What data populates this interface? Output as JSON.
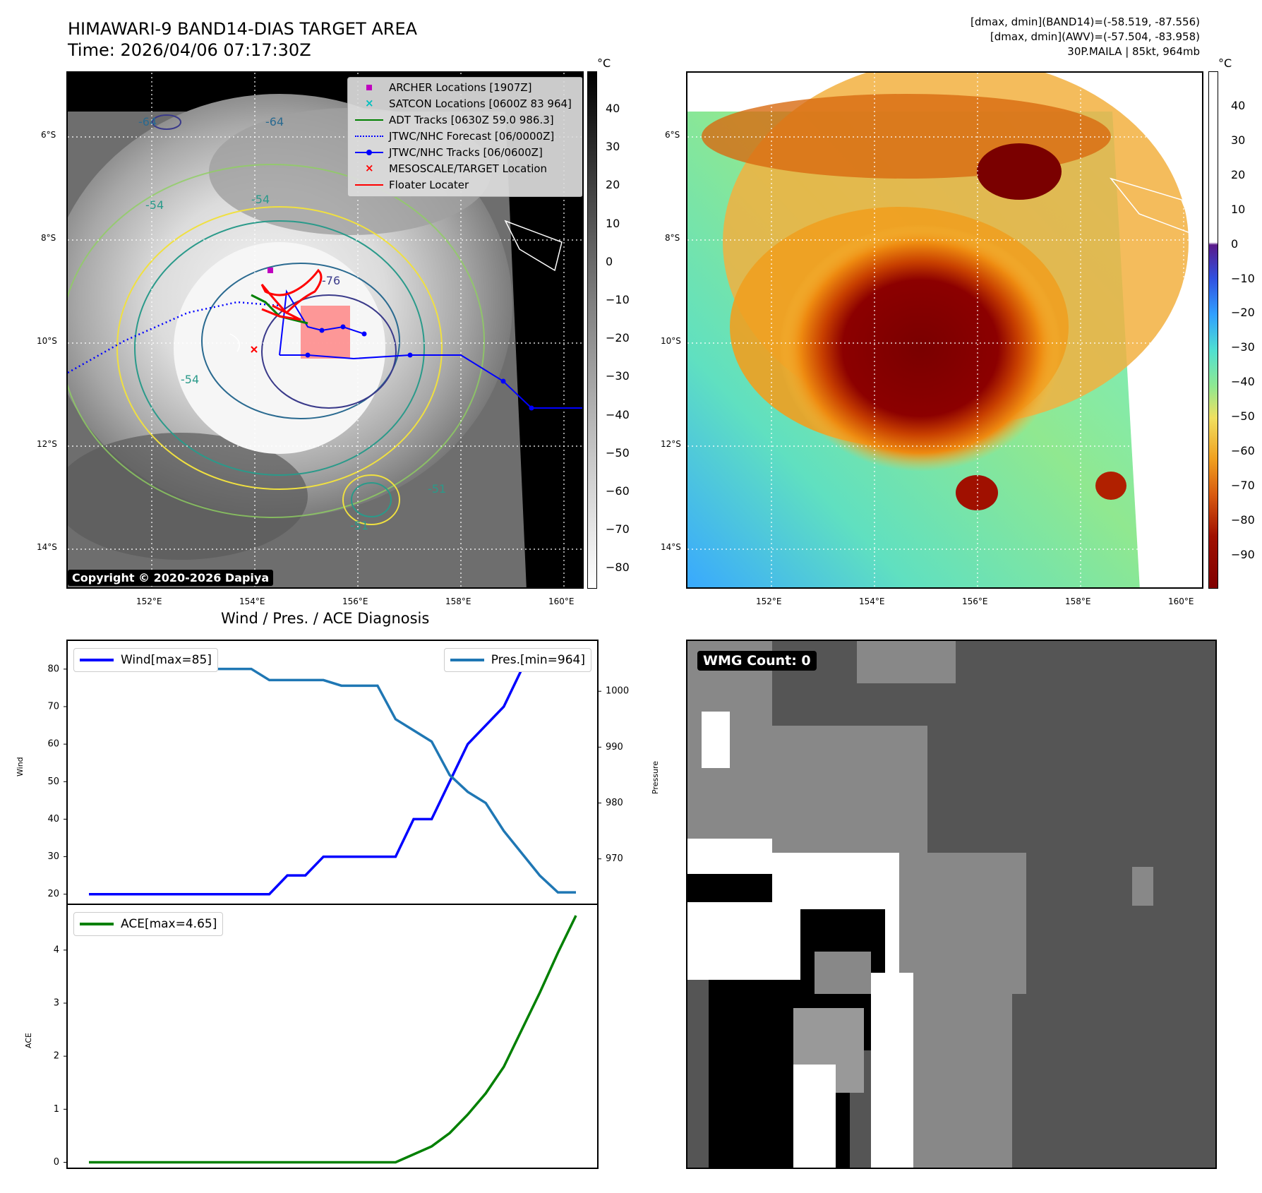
{
  "header": {
    "title_line1": "HIMAWARI-9 BAND14-DIAS TARGET AREA",
    "title_line2": "Time: 2026/04/06 07:17:30Z",
    "info_line1": "[dmax, dmin](BAND14)=(-58.519, -87.556)",
    "info_line2": "[dmax, dmin](AWV)=(-57.504, -83.958)",
    "info_line3": "30P.MAILA | 85kt, 964mb"
  },
  "map": {
    "lat_ticks": [
      "6°S",
      "8°S",
      "10°S",
      "12°S",
      "14°S"
    ],
    "lon_ticks": [
      "152°E",
      "154°E",
      "156°E",
      "158°E",
      "160°E"
    ],
    "copyright": "Copyright © 2020-2026 Dapiya",
    "contour_labels": [
      "-64",
      "-64",
      "-54",
      "-54",
      "-76",
      "-54",
      "-51",
      "-51"
    ],
    "legend": [
      {
        "label": "ARCHER Locations [1907Z]",
        "color": "#bf00bf",
        "symbol": "square"
      },
      {
        "label": "SATCON Locations [0600Z 83 964]",
        "color": "#00bfbf",
        "symbol": "x"
      },
      {
        "label": "ADT Tracks [0630Z 59.0 986.3]",
        "color": "#008000",
        "symbol": "line"
      },
      {
        "label": "JTWC/NHC Forecast [06/0000Z]",
        "color": "#0000ff",
        "symbol": "dotted"
      },
      {
        "label": "JTWC/NHC Tracks [06/0600Z]",
        "color": "#0000ff",
        "symbol": "line-dot"
      },
      {
        "label": "MESOSCALE/TARGET Location",
        "color": "#ff0000",
        "symbol": "x"
      },
      {
        "label": "Floater Locater",
        "color": "#ff0000",
        "symbol": "line"
      }
    ]
  },
  "colorbar_left": {
    "unit": "°C",
    "ticks": [
      "40",
      "30",
      "20",
      "10",
      "0",
      "−10",
      "−20",
      "−30",
      "−40",
      "−50",
      "−60",
      "−70",
      "−80"
    ]
  },
  "colorbar_right": {
    "unit": "°C",
    "ticks": [
      "40",
      "30",
      "20",
      "10",
      "0",
      "−10",
      "−20",
      "−30",
      "−40",
      "−50",
      "−60",
      "−70",
      "−80",
      "−90"
    ]
  },
  "diagnosis": {
    "title": "Wind / Pres. / ACE Diagnosis",
    "wind_axis_label": "Wind",
    "pressure_axis_label": "Pressure",
    "ace_axis_label": "ACE",
    "wind_legend": "Wind[max=85]",
    "pres_legend": "Pres.[min=964]",
    "ace_legend": "ACE[max=4.65]",
    "wind_ticks": [
      "80",
      "70",
      "60",
      "50",
      "40",
      "30",
      "20"
    ],
    "pres_ticks": [
      "1000",
      "990",
      "980",
      "970"
    ],
    "ace_ticks": [
      "4",
      "3",
      "2",
      "1",
      "0"
    ]
  },
  "wmg": {
    "label": "WMG Count: 0"
  },
  "colors": {
    "wind": "#0000ff",
    "pressure": "#1f77b4",
    "ace": "#008000"
  },
  "chart_data": [
    {
      "type": "line",
      "title": "Wind / Pres. / ACE Diagnosis",
      "x": [
        0,
        1,
        2,
        3,
        4,
        5,
        6,
        7,
        8,
        9,
        10,
        11,
        12,
        13,
        14,
        15,
        16,
        17,
        18,
        19,
        20,
        21,
        22,
        23,
        24,
        25,
        26,
        27
      ],
      "series": [
        {
          "name": "Wind[max=85]",
          "axis": "left",
          "ylabel": "Wind",
          "ylim": [
            17.5,
            87.5
          ],
          "values": [
            20,
            20,
            20,
            20,
            20,
            20,
            20,
            20,
            20,
            20,
            20,
            25,
            25,
            30,
            30,
            30,
            30,
            30,
            40,
            40,
            50,
            60,
            65,
            70,
            80,
            85,
            85,
            85
          ]
        },
        {
          "name": "Pres.[min=964]",
          "axis": "right",
          "ylabel": "Pressure",
          "ylim": [
            962,
            1009
          ],
          "values": [
            1005,
            1005,
            1005,
            1004,
            1004,
            1004,
            1004,
            1004,
            1004,
            1004,
            1002,
            1002,
            1002,
            1002,
            1001,
            1001,
            1001,
            995,
            993,
            991,
            985,
            982,
            980,
            975,
            971,
            967,
            964,
            964
          ]
        }
      ]
    },
    {
      "type": "line",
      "x": [
        0,
        1,
        2,
        3,
        4,
        5,
        6,
        7,
        8,
        9,
        10,
        11,
        12,
        13,
        14,
        15,
        16,
        17,
        18,
        19,
        20,
        21,
        22,
        23,
        24,
        25,
        26,
        27
      ],
      "series": [
        {
          "name": "ACE[max=4.65]",
          "ylabel": "ACE",
          "ylim": [
            -0.1,
            4.85
          ],
          "values": [
            0,
            0,
            0,
            0,
            0,
            0,
            0,
            0,
            0,
            0,
            0,
            0,
            0,
            0,
            0,
            0,
            0,
            0,
            0.15,
            0.3,
            0.55,
            0.9,
            1.3,
            1.8,
            2.5,
            3.2,
            3.95,
            4.65
          ]
        }
      ]
    }
  ]
}
